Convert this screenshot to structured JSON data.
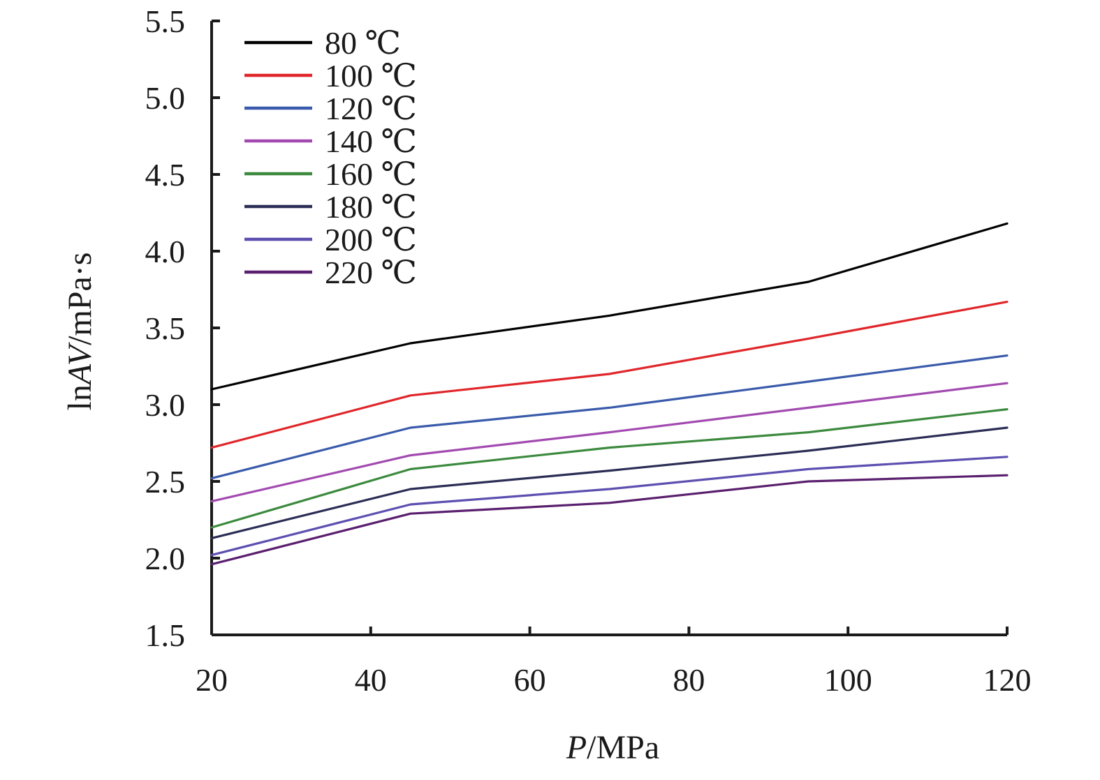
{
  "chart_data": {
    "type": "line",
    "title": "",
    "xlabel": {
      "italic": "P",
      "rest": "/MPa"
    },
    "ylabel": {
      "prefix": "ln",
      "italic": "AV",
      "rest": "/mPa·s"
    },
    "xlim": [
      20,
      120
    ],
    "ylim": [
      1.5,
      5.5
    ],
    "x_ticks": [
      20,
      40,
      60,
      80,
      100,
      120
    ],
    "y_ticks": [
      1.5,
      2.0,
      2.5,
      3.0,
      3.5,
      4.0,
      4.5,
      5.0,
      5.5
    ],
    "x_tick_labels": [
      "20",
      "40",
      "60",
      "80",
      "100",
      "120"
    ],
    "y_tick_labels": [
      "1.5",
      "2.0",
      "2.5",
      "3.0",
      "3.5",
      "4.0",
      "4.5",
      "5.0",
      "5.5"
    ],
    "grid": false,
    "legend_position": "top-left",
    "x": [
      20,
      45,
      70,
      95,
      120
    ],
    "series": [
      {
        "name": "80 ℃",
        "color": "#000000",
        "values": [
          3.1,
          3.4,
          3.58,
          3.8,
          4.18
        ]
      },
      {
        "name": "100 ℃",
        "color": "#e0262a",
        "values": [
          2.72,
          3.06,
          3.2,
          3.43,
          3.67
        ]
      },
      {
        "name": "120 ℃",
        "color": "#3a5bab",
        "values": [
          2.52,
          2.85,
          2.98,
          3.15,
          3.32
        ]
      },
      {
        "name": "140 ℃",
        "color": "#a24ab0",
        "values": [
          2.37,
          2.67,
          2.82,
          2.98,
          3.14
        ]
      },
      {
        "name": "160 ℃",
        "color": "#3c8a3e",
        "values": [
          2.2,
          2.58,
          2.72,
          2.82,
          2.97
        ]
      },
      {
        "name": "180 ℃",
        "color": "#2b2d55",
        "values": [
          2.13,
          2.45,
          2.57,
          2.7,
          2.85
        ]
      },
      {
        "name": "200 ℃",
        "color": "#5c4fb0",
        "values": [
          2.02,
          2.35,
          2.45,
          2.58,
          2.66
        ]
      },
      {
        "name": "220 ℃",
        "color": "#5a1f6e",
        "values": [
          1.96,
          2.29,
          2.36,
          2.5,
          2.54
        ]
      }
    ]
  }
}
